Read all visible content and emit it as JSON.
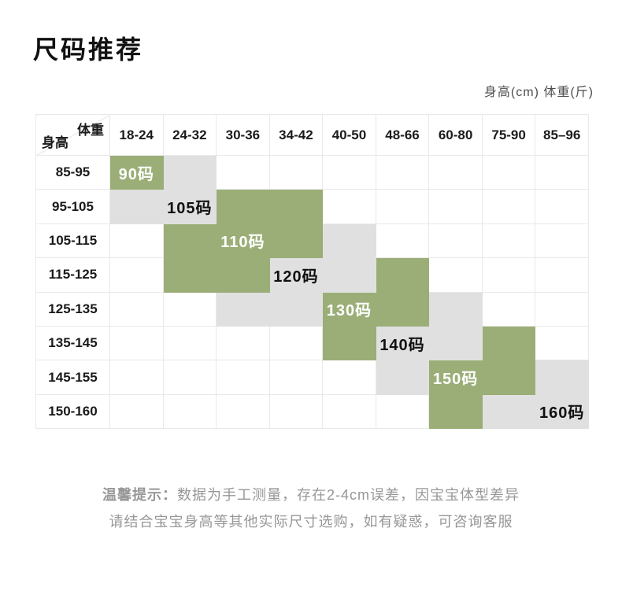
{
  "page": {
    "title": "尺码推荐",
    "units_label": "身高(cm) 体重(斤)"
  },
  "colors": {
    "green": "#9BAE77",
    "gray": "#E0E0E0",
    "grid": "#E9E9E9",
    "label_on_green": "#FFFFFF",
    "label_on_gray": "#111111",
    "note_text": "#979797"
  },
  "table": {
    "corner": {
      "weight": "体重",
      "height": "身高"
    },
    "weight_columns": [
      "18-24",
      "24-32",
      "30-36",
      "34-42",
      "40-50",
      "48-66",
      "60-80",
      "75-90",
      "85–96"
    ],
    "rows": [
      {
        "height": "85-95",
        "cells": [
          {
            "bg": "green",
            "label": "90码",
            "ink": "white"
          },
          {
            "bg": "gray"
          },
          {},
          {},
          {},
          {},
          {},
          {},
          {}
        ]
      },
      {
        "height": "95-105",
        "cells": [
          {
            "bg": "gray"
          },
          {
            "bg": "gray",
            "label": "105码",
            "ink": "black"
          },
          {
            "bg": "green"
          },
          {
            "bg": "green"
          },
          {},
          {},
          {},
          {},
          {}
        ]
      },
      {
        "height": "105-115",
        "cells": [
          {},
          {
            "bg": "green"
          },
          {
            "bg": "green",
            "label": "110码",
            "ink": "white"
          },
          {
            "bg": "green"
          },
          {
            "bg": "gray"
          },
          {},
          {},
          {},
          {}
        ]
      },
      {
        "height": "115-125",
        "cells": [
          {},
          {
            "bg": "green"
          },
          {
            "bg": "green"
          },
          {
            "bg": "gray",
            "label": "120码",
            "ink": "black"
          },
          {
            "bg": "gray"
          },
          {
            "bg": "green"
          },
          {},
          {},
          {}
        ]
      },
      {
        "height": "125-135",
        "cells": [
          {},
          {},
          {
            "bg": "gray"
          },
          {
            "bg": "gray"
          },
          {
            "bg": "green",
            "label": "130码",
            "ink": "white"
          },
          {
            "bg": "green"
          },
          {
            "bg": "gray"
          },
          {},
          {}
        ]
      },
      {
        "height": "135-145",
        "cells": [
          {},
          {},
          {},
          {},
          {
            "bg": "green"
          },
          {
            "bg": "gray",
            "label": "140码",
            "ink": "black"
          },
          {
            "bg": "gray"
          },
          {
            "bg": "green"
          },
          {}
        ]
      },
      {
        "height": "145-155",
        "cells": [
          {},
          {},
          {},
          {},
          {},
          {
            "bg": "gray"
          },
          {
            "bg": "green",
            "label": "150码",
            "ink": "white"
          },
          {
            "bg": "green"
          },
          {
            "bg": "gray"
          }
        ]
      },
      {
        "height": "150-160",
        "cells": [
          {},
          {},
          {},
          {},
          {},
          {},
          {
            "bg": "green"
          },
          {
            "bg": "gray"
          },
          {
            "bg": "gray",
            "label": "160码",
            "ink": "black"
          }
        ]
      }
    ]
  },
  "note": {
    "prefix": "温馨提示：",
    "line1": "数据为手工测量，存在2-4cm误差，因宝宝体型差异",
    "line2": "请结合宝宝身高等其他实际尺寸选购，如有疑惑，可咨询客服"
  },
  "chart_data": {
    "type": "table",
    "title": "尺码推荐",
    "units": "身高(cm) 体重(斤)",
    "weight_columns_jin": [
      "18-24",
      "24-32",
      "30-36",
      "34-42",
      "40-50",
      "48-66",
      "60-80",
      "75-90",
      "85–96"
    ],
    "height_rows_cm": [
      "85-95",
      "95-105",
      "105-115",
      "115-125",
      "125-135",
      "135-145",
      "145-155",
      "150-160"
    ],
    "size_recommendations": [
      {
        "size": "90码",
        "height_cm": "85-95",
        "weight_jin": "18-24"
      },
      {
        "size": "105码",
        "height_cm": "95-105",
        "weight_jin": "24-32"
      },
      {
        "size": "110码",
        "height_cm": "105-115",
        "weight_jin": "30-36"
      },
      {
        "size": "120码",
        "height_cm": "115-125",
        "weight_jin": "34-42"
      },
      {
        "size": "130码",
        "height_cm": "125-135",
        "weight_jin": "40-50"
      },
      {
        "size": "140码",
        "height_cm": "135-145",
        "weight_jin": "48-66"
      },
      {
        "size": "150码",
        "height_cm": "145-155",
        "weight_jin": "60-80"
      },
      {
        "size": "160码",
        "height_cm": "150-160",
        "weight_jin": "85–96"
      }
    ]
  }
}
